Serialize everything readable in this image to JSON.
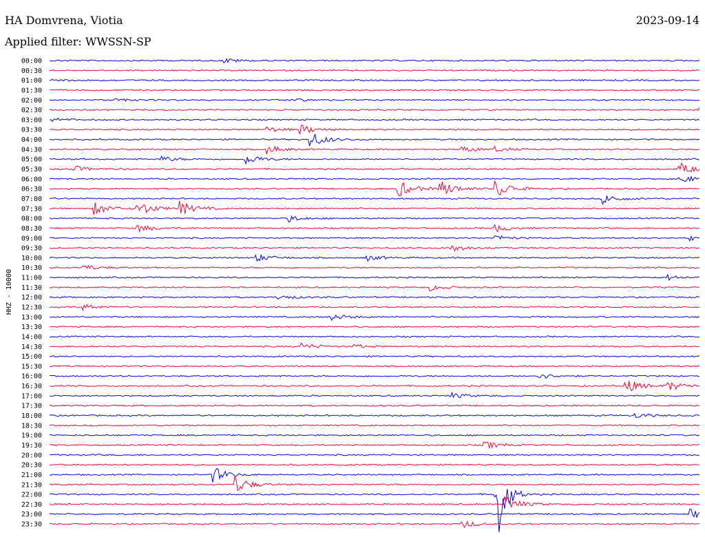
{
  "header": {
    "station": "HA Domvrena, Viotia",
    "date": "2023-09-14",
    "filter": "Applied filter: WWSSN-SP"
  },
  "colors": {
    "blue": "#0000ff",
    "red": "#ff0033"
  },
  "chart_data": {
    "type": "line",
    "title": "HA Domvrena, Viotia",
    "subtitle": "Applied filter: WWSSN-SP",
    "ylabel": "HHZ - 10000",
    "xlabel": "",
    "trace_colors": [
      "#0000ff",
      "#ff0033"
    ],
    "row_labels": [
      "00:00",
      "00:30",
      "01:00",
      "01:30",
      "02:00",
      "02:30",
      "03:00",
      "03:30",
      "04:00",
      "04:30",
      "05:00",
      "05:30",
      "06:00",
      "06:30",
      "07:00",
      "07:30",
      "08:00",
      "08:30",
      "09:00",
      "09:30",
      "10:00",
      "10:30",
      "11:00",
      "11:30",
      "12:00",
      "12:30",
      "13:00",
      "13:30",
      "14:00",
      "14:30",
      "15:00",
      "15:30",
      "16:00",
      "16:30",
      "17:00",
      "17:30",
      "18:00",
      "18:30",
      "19:00",
      "19:30",
      "20:00",
      "20:30",
      "21:00",
      "21:30",
      "22:00",
      "22:30",
      "23:00",
      "23:30"
    ],
    "events": [
      {
        "row": 0,
        "minute": 8,
        "amp": 4
      },
      {
        "row": 2,
        "minute": 0,
        "amp": 2
      },
      {
        "row": 4,
        "minute": 11,
        "amp": 3
      },
      {
        "row": 4,
        "minute": 3,
        "amp": 2
      },
      {
        "row": 5,
        "minute": 30,
        "amp": 6
      },
      {
        "row": 6,
        "minute": 0,
        "amp": 3
      },
      {
        "row": 7,
        "minute": 10,
        "amp": 4
      },
      {
        "row": 7,
        "minute": 11.5,
        "amp": 8
      },
      {
        "row": 8,
        "minute": 12,
        "amp": 12
      },
      {
        "row": 9,
        "minute": 10,
        "amp": 7
      },
      {
        "row": 9,
        "minute": 19,
        "amp": 5
      },
      {
        "row": 9,
        "minute": 20.5,
        "amp": 4
      },
      {
        "row": 10,
        "minute": 9,
        "amp": 8
      },
      {
        "row": 10,
        "minute": 5,
        "amp": 5
      },
      {
        "row": 11,
        "minute": 1,
        "amp": 5
      },
      {
        "row": 11,
        "minute": 29,
        "amp": 10
      },
      {
        "row": 12,
        "minute": 29,
        "amp": 7
      },
      {
        "row": 13,
        "minute": 16,
        "amp": 14
      },
      {
        "row": 13,
        "minute": 18,
        "amp": 12
      },
      {
        "row": 13,
        "minute": 20.5,
        "amp": 16
      },
      {
        "row": 14,
        "minute": 25.5,
        "amp": 8
      },
      {
        "row": 15,
        "minute": 2,
        "amp": 10
      },
      {
        "row": 15,
        "minute": 4,
        "amp": 12
      },
      {
        "row": 15,
        "minute": 6,
        "amp": 10
      },
      {
        "row": 16,
        "minute": 11,
        "amp": 5
      },
      {
        "row": 17,
        "minute": 4,
        "amp": 6
      },
      {
        "row": 17,
        "minute": 20.5,
        "amp": 6
      },
      {
        "row": 18,
        "minute": 20.5,
        "amp": 5
      },
      {
        "row": 18,
        "minute": 29.5,
        "amp": 4
      },
      {
        "row": 19,
        "minute": 18.5,
        "amp": 6
      },
      {
        "row": 20,
        "minute": 9.5,
        "amp": 6
      },
      {
        "row": 20,
        "minute": 14.5,
        "amp": 5
      },
      {
        "row": 21,
        "minute": 1.5,
        "amp": 4
      },
      {
        "row": 22,
        "minute": 28.5,
        "amp": 4
      },
      {
        "row": 23,
        "minute": 17.5,
        "amp": 5
      },
      {
        "row": 24,
        "minute": 10.5,
        "amp": 4
      },
      {
        "row": 25,
        "minute": 1.5,
        "amp": 5
      },
      {
        "row": 26,
        "minute": 13,
        "amp": 5
      },
      {
        "row": 29,
        "minute": 11.5,
        "amp": 6
      },
      {
        "row": 29,
        "minute": 14,
        "amp": 3
      },
      {
        "row": 32,
        "minute": 22.5,
        "amp": 5
      },
      {
        "row": 33,
        "minute": 26.5,
        "amp": 12
      },
      {
        "row": 33,
        "minute": 28.5,
        "amp": 8
      },
      {
        "row": 34,
        "minute": 18.5,
        "amp": 4
      },
      {
        "row": 36,
        "minute": 27,
        "amp": 4
      },
      {
        "row": 39,
        "minute": 20,
        "amp": 6
      },
      {
        "row": 42,
        "minute": 7.5,
        "amp": 12
      },
      {
        "row": 43,
        "minute": 8.5,
        "amp": 14
      },
      {
        "row": 44,
        "minute": 20.5,
        "amp": 130
      },
      {
        "row": 45,
        "minute": 21,
        "amp": 12
      },
      {
        "row": 46,
        "minute": 29.5,
        "amp": 8
      },
      {
        "row": 47,
        "minute": 19,
        "amp": 6
      }
    ]
  }
}
